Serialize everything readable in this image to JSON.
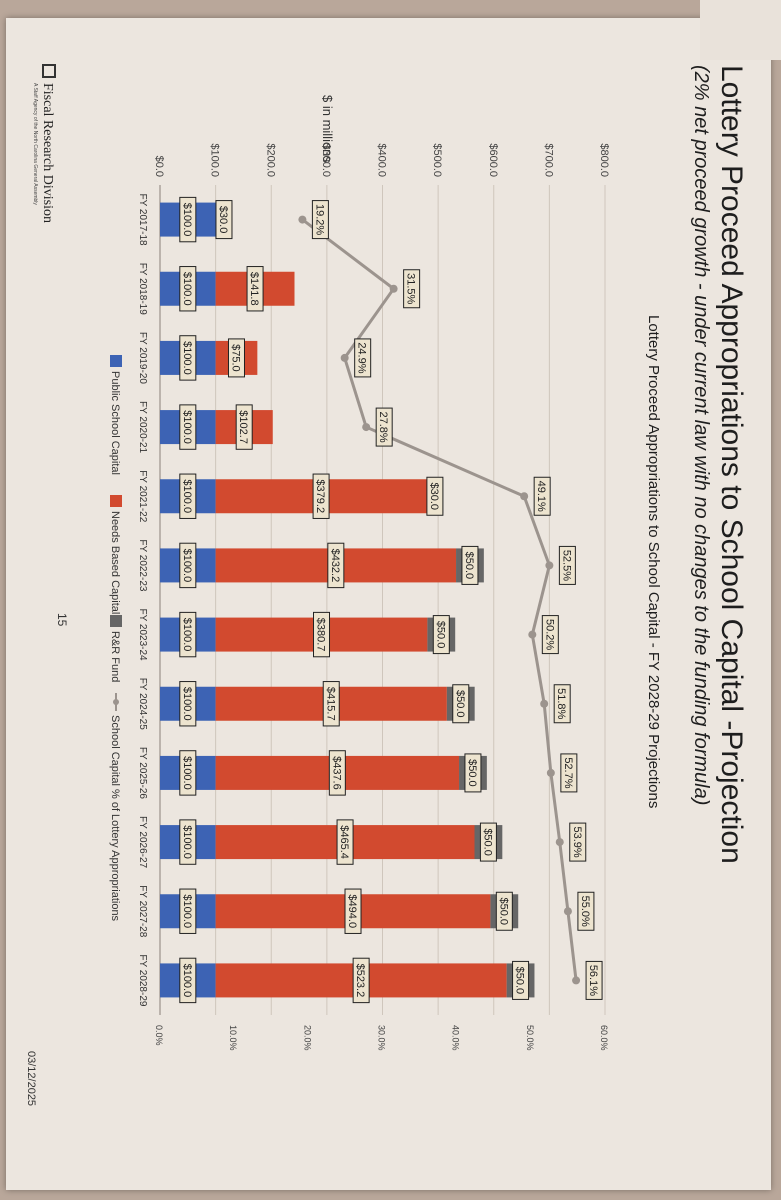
{
  "slide": {
    "title": "Lottery Proceed Appropriations to School Capital -Projection",
    "subtitle": "(2% net proceed growth - under current law with no changes to the funding formula)",
    "footer_org": "Fiscal Research Division",
    "footer_tagline": "A Staff Agency of the North Carolina General Assembly",
    "page_number": "15",
    "date": "03/12/2025"
  },
  "colors": {
    "public": "#3d63b4",
    "needs": "#d24a2f",
    "rr": "#666666",
    "line": "#9c948e",
    "label_bg": "#ede4cf"
  },
  "chart_data": {
    "type": "bar",
    "stacked": true,
    "title": "Lottery Proceed Appropriations to School Capital - FY 2028-29 Projections",
    "ylabel": "$ in millions",
    "ylim": [
      0,
      800
    ],
    "y_ticks": [
      "$0.0",
      "$100.0",
      "$200.0",
      "$300.0",
      "$400.0",
      "$500.0",
      "$600.0",
      "$700.0",
      "$800.0"
    ],
    "y2lim": [
      0,
      60
    ],
    "y2_ticks": [
      "0.0%",
      "10.0%",
      "20.0%",
      "30.0%",
      "40.0%",
      "50.0%",
      "60.0%"
    ],
    "grid": true,
    "legend_position": "bottom",
    "categories": [
      "FY 2017-18",
      "FY 2018-19",
      "FY 2019-20",
      "FY 2020-21",
      "FY 2021-22",
      "FY 2022-23",
      "FY 2023-24",
      "FY 2024-25",
      "FY 2025-26",
      "FY 2026-27",
      "FY 2027-28",
      "FY 2028-29"
    ],
    "series": [
      {
        "name": "Public School Capital",
        "values": [
          100,
          100,
          100,
          100,
          100,
          100,
          100,
          100,
          100,
          100,
          100,
          100
        ],
        "labels": [
          "$100.0",
          "$100.0",
          "$100.0",
          "$100.0",
          "$100.0",
          "$100.0",
          "$100.0",
          "$100.0",
          "$100.0",
          "$100.0",
          "$100.0",
          "$100.0"
        ]
      },
      {
        "name": "Needs Based Capital",
        "values": [
          30,
          141.8,
          75,
          102.7,
          379.2,
          432.2,
          380.7,
          415.7,
          437.6,
          465.4,
          494,
          523.2
        ],
        "labels": [
          "$30.0",
          "$141.8",
          "$75.0",
          "$102.7",
          "$379.2",
          "$432.2",
          "$380.7",
          "$415.7",
          "$437.6",
          "$465.4",
          "$494.0",
          "$523.2"
        ]
      },
      {
        "name": "R&R Fund",
        "values": [
          0,
          0,
          0,
          0,
          30,
          50,
          50,
          50,
          50,
          50,
          50,
          50
        ],
        "labels": [
          "",
          "",
          "",
          "",
          "$30.0",
          "$50.0",
          "$50.0",
          "$50.0",
          "$50.0",
          "$50.0",
          "$50.0",
          "$50.0"
        ]
      },
      {
        "name": "School Capital % of Lottery Appropriations",
        "type": "line",
        "axis": "right",
        "values": [
          19.2,
          31.5,
          24.9,
          27.8,
          49.1,
          52.5,
          50.2,
          51.8,
          52.7,
          53.9,
          55.0,
          56.1
        ],
        "labels": [
          "19.2%",
          "31.5%",
          "24.9%",
          "27.8%",
          "49.1%",
          "52.5%",
          "50.2%",
          "51.8%",
          "52.7%",
          "53.9%",
          "55.0%",
          "56.1%"
        ]
      }
    ]
  }
}
